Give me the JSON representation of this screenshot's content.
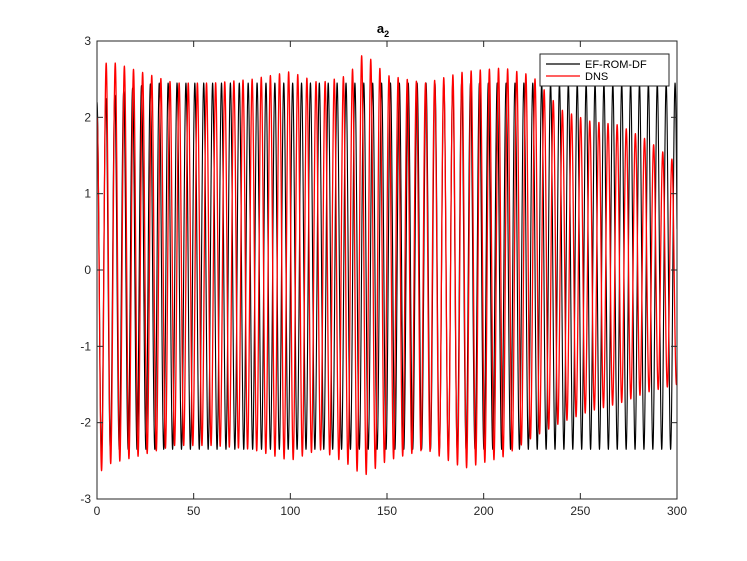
{
  "chart_data": {
    "type": "line",
    "title": "a",
    "title_subscript": "2",
    "xlabel": "",
    "ylabel": "",
    "xlim": [
      0,
      300
    ],
    "ylim": [
      -3,
      3
    ],
    "x_ticks": [
      0,
      50,
      100,
      150,
      200,
      250,
      300
    ],
    "y_ticks": [
      -3,
      -2,
      -1,
      0,
      1,
      2,
      3
    ],
    "grid": false,
    "legend_position": "top-right",
    "series": [
      {
        "name": "EF-ROM-DF",
        "color": "#000000",
        "period": 4.6,
        "phase_deg": 0,
        "x_start": 0,
        "x_end": 300,
        "envelope": {
          "x": [
            0,
            10,
            20,
            30,
            50,
            100,
            150,
            200,
            250,
            300
          ],
          "ymax": [
            2.2,
            2.3,
            2.4,
            2.45,
            2.45,
            2.45,
            2.45,
            2.45,
            2.45,
            2.45
          ],
          "ymin": [
            -2.4,
            -2.35,
            -2.35,
            -2.35,
            -2.35,
            -2.35,
            -2.35,
            -2.35,
            -2.35,
            -2.35
          ]
        }
      },
      {
        "name": "DNS",
        "color": "#ff0000",
        "period": 4.72,
        "phase_deg": 0,
        "x_start": 0,
        "x_end": 300,
        "envelope": {
          "x": [
            0,
            5,
            20,
            40,
            60,
            80,
            100,
            115,
            130,
            138,
            150,
            170,
            190,
            210,
            225,
            240,
            255,
            270,
            285,
            300
          ],
          "ymax": [
            2.0,
            2.75,
            2.62,
            2.45,
            2.45,
            2.5,
            2.6,
            2.45,
            2.55,
            2.85,
            2.55,
            2.45,
            2.6,
            2.65,
            2.55,
            2.1,
            1.95,
            1.9,
            1.7,
            1.4
          ],
          "ymin": [
            -2.7,
            -2.55,
            -2.45,
            -2.3,
            -2.3,
            -2.35,
            -2.5,
            -2.35,
            -2.55,
            -2.7,
            -2.5,
            -2.35,
            -2.6,
            -2.45,
            -2.2,
            -2.0,
            -1.85,
            -1.75,
            -1.6,
            -1.5
          ]
        }
      }
    ]
  }
}
